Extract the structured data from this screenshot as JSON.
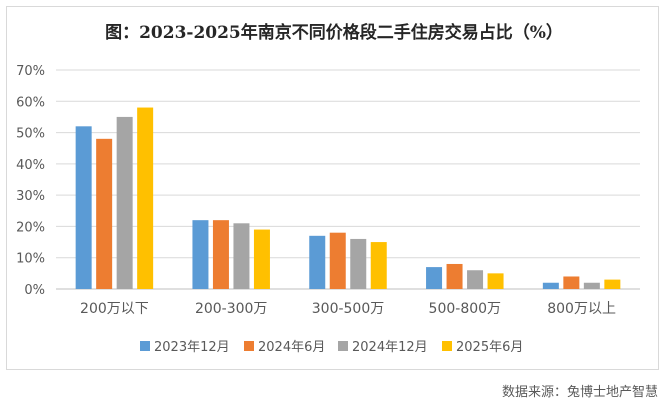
{
  "title": "图：2023-2025年南京不同价格段二手住房交易占比（%）",
  "source": "数据来源：兔博士地产智慧",
  "chart_data": {
    "type": "bar",
    "categories": [
      "200万以下",
      "200-300万",
      "300-500万",
      "500-800万",
      "800万以上"
    ],
    "series": [
      {
        "name": "2023年12月",
        "color": "#5b9bd5",
        "values": [
          52,
          22,
          17,
          7,
          2
        ]
      },
      {
        "name": "2024年6月",
        "color": "#ed7d31",
        "values": [
          48,
          22,
          18,
          8,
          4
        ]
      },
      {
        "name": "2024年12月",
        "color": "#a5a5a5",
        "values": [
          55,
          21,
          16,
          6,
          2
        ]
      },
      {
        "name": "2025年6月",
        "color": "#ffc000",
        "values": [
          58,
          19,
          15,
          5,
          3
        ]
      }
    ],
    "ylim": [
      0,
      70
    ],
    "yticks": [
      "0%",
      "10%",
      "20%",
      "30%",
      "40%",
      "50%",
      "60%",
      "70%"
    ],
    "grid": true,
    "legend": "bottom"
  }
}
